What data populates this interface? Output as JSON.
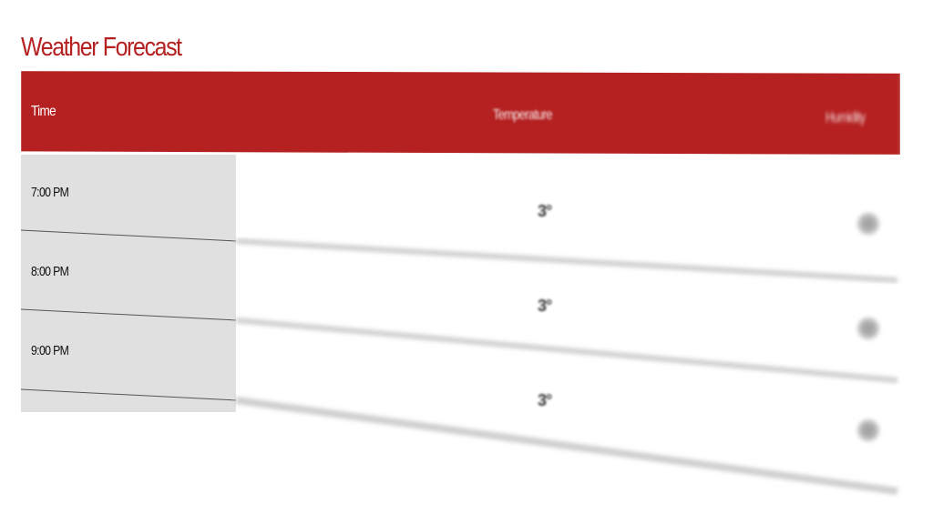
{
  "title": "Weather Forecast",
  "table": {
    "columns": [
      "Time",
      "Temperature",
      "Humidity"
    ],
    "rows": [
      {
        "time": "7:00 PM",
        "temperature": "3°"
      },
      {
        "time": "8:00 PM",
        "temperature": "3°"
      },
      {
        "time": "9:00 PM",
        "temperature": "3°"
      }
    ]
  },
  "colors": {
    "accent": "#b52121",
    "time_column_background": "#e0e0e0"
  }
}
